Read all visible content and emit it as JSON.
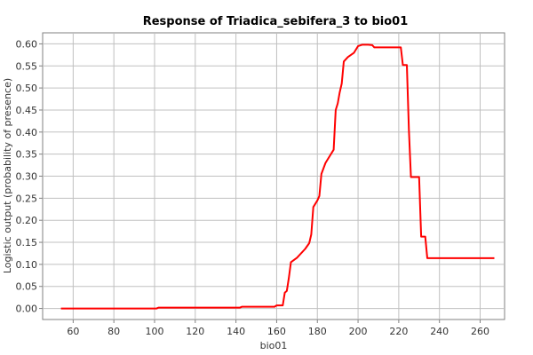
{
  "chart_data": {
    "type": "line",
    "title": "Response of Triadica_sebifera_3 to bio01",
    "xlabel": "bio01",
    "ylabel": "Logistic output (probability of presence)",
    "xlim": [
      45,
      272
    ],
    "ylim": [
      -0.025,
      0.625
    ],
    "x_ticks": [
      60,
      80,
      100,
      120,
      140,
      160,
      180,
      200,
      220,
      240,
      260
    ],
    "x_tick_labels": [
      "60",
      "80",
      "100",
      "120",
      "140",
      "160",
      "180",
      "200",
      "220",
      "240",
      "260"
    ],
    "y_ticks": [
      0.0,
      0.05,
      0.1,
      0.15,
      0.2,
      0.25,
      0.3,
      0.35,
      0.4,
      0.45,
      0.5,
      0.55,
      0.6
    ],
    "y_tick_labels": [
      "0.00",
      "0.05",
      "0.10",
      "0.15",
      "0.20",
      "0.25",
      "0.30",
      "0.35",
      "0.40",
      "0.45",
      "0.50",
      "0.55",
      "0.60"
    ],
    "grid": true,
    "line_color": "#ff0000",
    "series": [
      {
        "x": [
          54,
          101,
          102,
          142,
          143,
          159,
          160,
          163,
          164,
          165,
          166,
          167,
          170,
          174,
          176,
          177,
          178,
          180,
          181,
          182,
          184,
          186,
          188,
          189,
          190,
          191,
          192,
          193,
          195,
          198,
          200,
          202,
          205,
          207,
          208,
          221,
          222,
          224,
          225,
          226,
          230,
          231,
          233,
          234,
          267
        ],
        "y": [
          0.0,
          0.0,
          0.002,
          0.002,
          0.004,
          0.004,
          0.007,
          0.007,
          0.036,
          0.04,
          0.07,
          0.105,
          0.115,
          0.135,
          0.148,
          0.168,
          0.23,
          0.245,
          0.255,
          0.305,
          0.33,
          0.345,
          0.36,
          0.45,
          0.465,
          0.49,
          0.51,
          0.56,
          0.57,
          0.58,
          0.595,
          0.598,
          0.598,
          0.597,
          0.592,
          0.592,
          0.552,
          0.552,
          0.405,
          0.298,
          0.298,
          0.163,
          0.163,
          0.114,
          0.114
        ]
      }
    ]
  }
}
